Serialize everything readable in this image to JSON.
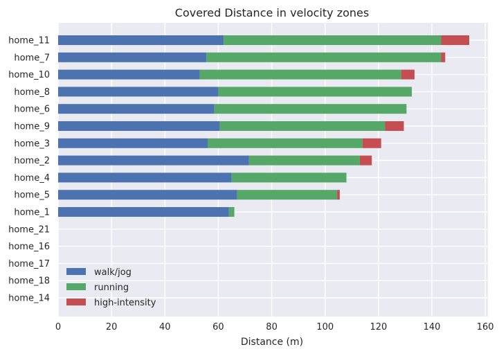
{
  "chart_data": {
    "type": "bar",
    "orientation": "horizontal",
    "stacked": true,
    "title": "Covered Distance in velocity zones",
    "xlabel": "Distance (m)",
    "ylabel": "",
    "xlim": [
      0,
      161
    ],
    "xticks": [
      0,
      20,
      40,
      60,
      80,
      100,
      120,
      140,
      160
    ],
    "grid": true,
    "legend_position": "lower-left",
    "categories": [
      "home_11",
      "home_7",
      "home_10",
      "home_8",
      "home_6",
      "home_9",
      "home_3",
      "home_2",
      "home_4",
      "home_5",
      "home_1",
      "home_21",
      "home_16",
      "home_17",
      "home_18",
      "home_14"
    ],
    "series": [
      {
        "name": "walk/jog",
        "color": "#4c72b0",
        "values": [
          62,
          55.5,
          53,
          60,
          58.5,
          60.5,
          56,
          71.5,
          65,
          67,
          64,
          0,
          0,
          0,
          0,
          0
        ]
      },
      {
        "name": "running",
        "color": "#55a868",
        "values": [
          81.5,
          88,
          75.5,
          72.5,
          72,
          62,
          58,
          41.5,
          43,
          37.5,
          2,
          0,
          0,
          0,
          0,
          0
        ]
      },
      {
        "name": "high-intensity",
        "color": "#c44e52",
        "values": [
          10.5,
          1.5,
          5,
          0,
          0,
          7,
          7,
          4.5,
          0,
          1,
          0,
          0,
          0,
          0,
          0,
          0
        ]
      }
    ]
  }
}
